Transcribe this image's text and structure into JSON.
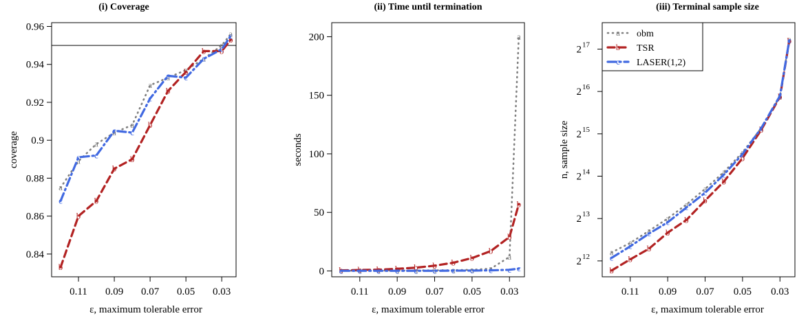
{
  "chart_data": [
    {
      "type": "line",
      "title": "(i) Coverage",
      "xlabel": "ε, maximum tolerable error",
      "ylabel": "coverage",
      "x": [
        0.12,
        0.11,
        0.1,
        0.09,
        0.08,
        0.07,
        0.06,
        0.05,
        0.04,
        0.03,
        0.025
      ],
      "xlim": [
        0.125,
        0.022
      ],
      "xticks": [
        0.11,
        0.09,
        0.07,
        0.05,
        0.03
      ],
      "xtick_labels": [
        "0.11",
        "0.09",
        "0.07",
        "0.05",
        "0.03"
      ],
      "ylim": [
        0.828,
        0.962
      ],
      "yticks": [
        0.84,
        0.86,
        0.88,
        0.9,
        0.92,
        0.94,
        0.96
      ],
      "ytick_labels": [
        "0.84",
        "0.86",
        "0.88",
        "0.9",
        "0.92",
        "0.94",
        "0.96"
      ],
      "hline": 0.95,
      "series": [
        {
          "name": "obm",
          "marker": "a",
          "style": "dotted",
          "color": "#7f7f7f",
          "values": [
            0.875,
            0.889,
            0.898,
            0.904,
            0.908,
            0.929,
            0.933,
            0.937,
            0.943,
            0.95,
            0.956
          ]
        },
        {
          "name": "TSR",
          "marker": "b",
          "style": "dashed",
          "color": "#b22222",
          "values": [
            0.833,
            0.86,
            0.868,
            0.885,
            0.89,
            0.908,
            0.926,
            0.936,
            0.947,
            0.947,
            0.953
          ]
        },
        {
          "name": "LASER(1,2)",
          "marker": "c",
          "style": "dashdot",
          "color": "#4169e1",
          "values": [
            0.868,
            0.891,
            0.892,
            0.905,
            0.904,
            0.922,
            0.934,
            0.933,
            0.943,
            0.948,
            0.955
          ]
        }
      ]
    },
    {
      "type": "line",
      "title": "(ii) Time until termination",
      "xlabel": "ε, maximum tolerable error",
      "ylabel": "seconds",
      "x": [
        0.12,
        0.11,
        0.1,
        0.09,
        0.08,
        0.07,
        0.06,
        0.05,
        0.04,
        0.03,
        0.025
      ],
      "xlim": [
        0.125,
        0.022
      ],
      "xticks": [
        0.11,
        0.09,
        0.07,
        0.05,
        0.03
      ],
      "xtick_labels": [
        "0.11",
        "0.09",
        "0.07",
        "0.05",
        "0.03"
      ],
      "ylim": [
        -5,
        212
      ],
      "yticks": [
        0,
        50,
        100,
        150,
        200
      ],
      "ytick_labels": [
        "0",
        "50",
        "100",
        "150",
        "200"
      ],
      "series": [
        {
          "name": "obm",
          "marker": "a",
          "style": "dotted",
          "color": "#7f7f7f",
          "values": [
            0.2,
            0.2,
            0.3,
            0.3,
            0.4,
            0.5,
            0.7,
            1.0,
            2.0,
            12,
            200
          ]
        },
        {
          "name": "TSR",
          "marker": "b",
          "style": "dashed",
          "color": "#b22222",
          "values": [
            0.5,
            0.8,
            1.1,
            1.8,
            2.8,
            4.5,
            7.0,
            11,
            17,
            29,
            57
          ]
        },
        {
          "name": "LASER(1,2)",
          "marker": "c",
          "style": "dashdot",
          "color": "#4169e1",
          "values": [
            0.1,
            0.1,
            0.1,
            0.1,
            0.1,
            0.1,
            0.2,
            0.3,
            0.5,
            1.0,
            2.0
          ]
        }
      ]
    },
    {
      "type": "line",
      "title": "(iii) Terminal sample size",
      "xlabel": "ε, maximum tolerable error",
      "ylabel": "n, sample size",
      "y_scale": "log2",
      "x": [
        0.12,
        0.11,
        0.1,
        0.09,
        0.08,
        0.07,
        0.06,
        0.05,
        0.04,
        0.03,
        0.025
      ],
      "xlim": [
        0.125,
        0.022
      ],
      "xticks": [
        0.11,
        0.09,
        0.07,
        0.05,
        0.03
      ],
      "xtick_labels": [
        "0.11",
        "0.09",
        "0.07",
        "0.05",
        "0.03"
      ],
      "ylim": [
        3158,
        202000
      ],
      "yticks": [
        4096,
        8192,
        16384,
        32768,
        65536,
        131072
      ],
      "ytick_labels": [
        {
          "base": "2",
          "exp": "12"
        },
        {
          "base": "2",
          "exp": "13"
        },
        {
          "base": "2",
          "exp": "14"
        },
        {
          "base": "2",
          "exp": "15"
        },
        {
          "base": "2",
          "exp": "16"
        },
        {
          "base": "2",
          "exp": "17"
        }
      ],
      "legend": {
        "position": "top-left",
        "entries": [
          {
            "label": "obm",
            "marker": "a",
            "style": "dotted",
            "color": "#7f7f7f"
          },
          {
            "label": "TSR",
            "marker": "b",
            "style": "dashed",
            "color": "#b22222"
          },
          {
            "label": "LASER(1,2)",
            "marker": "c",
            "style": "dashdot",
            "color": "#4169e1"
          }
        ]
      },
      "series": [
        {
          "name": "obm",
          "marker": "a",
          "style": "dotted",
          "color": "#7f7f7f",
          "values": [
            4700,
            5500,
            6700,
            8200,
            10300,
            13300,
            17500,
            24200,
            36000,
            60500,
            153000
          ]
        },
        {
          "name": "TSR",
          "marker": "b",
          "style": "dashed",
          "color": "#b22222",
          "values": [
            3500,
            4200,
            5000,
            6500,
            8000,
            11000,
            15000,
            22000,
            35000,
            60000,
            150000
          ]
        },
        {
          "name": "LASER(1,2)",
          "marker": "c",
          "style": "dashdot",
          "color": "#4169e1",
          "values": [
            4300,
            5200,
            6400,
            7700,
            9800,
            12500,
            16800,
            23500,
            36000,
            61000,
            151000
          ]
        }
      ]
    }
  ]
}
